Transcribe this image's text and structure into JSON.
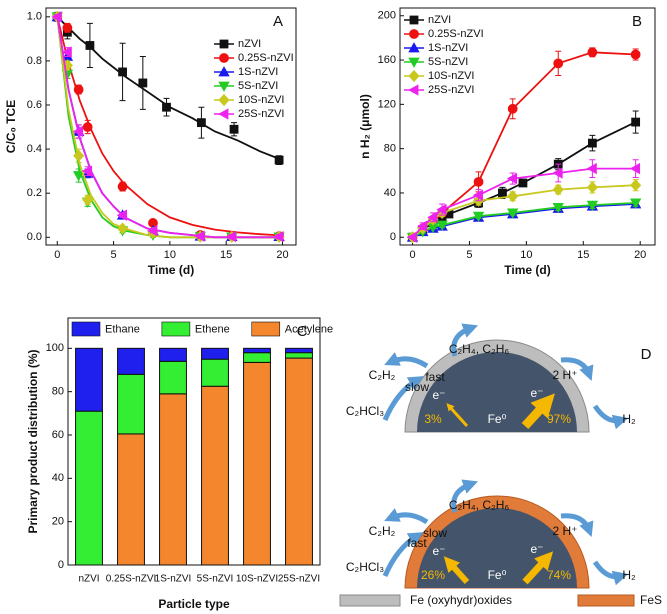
{
  "chart_data": [
    {
      "type": "scatter",
      "label": "A",
      "xlabel": "Time (d)",
      "ylabel": "C/C₀ TCE",
      "legend": "upper right",
      "xlim": [
        -1,
        21.2
      ],
      "ylim": [
        -0.035,
        1.04
      ],
      "xticks": [
        0,
        5,
        10,
        15,
        20
      ],
      "yticks": [
        {
          "value": 0,
          "label": "0.0"
        },
        0.2,
        0.4,
        0.6,
        0.8,
        {
          "value": 1,
          "label": "1.0"
        }
      ],
      "series": [
        {
          "name": "nZVI",
          "color": "#111111",
          "marker": "square",
          "x": [
            0,
            0.9,
            2.9,
            5.8,
            7.6,
            9.7,
            12.8,
            15.7,
            19.7
          ],
          "values": [
            1.0,
            0.93,
            0.87,
            0.75,
            0.7,
            0.59,
            0.52,
            0.49,
            0.35
          ],
          "errors": [
            0.02,
            0.03,
            0.1,
            0.13,
            0.12,
            0.04,
            0.07,
            0.03,
            0.02
          ],
          "fit": {
            "x": [
              0,
              1,
              2,
              3,
              4,
              5,
              6,
              8,
              10,
              12,
              14,
              16,
              18,
              20
            ],
            "values": [
              1,
              0.95,
              0.9,
              0.86,
              0.81,
              0.77,
              0.73,
              0.66,
              0.59,
              0.54,
              0.48,
              0.44,
              0.39,
              0.35
            ]
          }
        },
        {
          "name": "0.25S-nZVI",
          "color": "#ee1111",
          "marker": "circle",
          "x": [
            0,
            0.9,
            1.9,
            2.7,
            5.8,
            8.5,
            12.7,
            15.5,
            19.7
          ],
          "values": [
            1.0,
            0.95,
            0.67,
            0.5,
            0.23,
            0.065,
            0.01,
            0.005,
            0.005
          ],
          "errors": [
            0.01,
            0.02,
            0.02,
            0.03,
            0.02,
            0.01,
            0.01,
            0.01,
            0.01
          ],
          "fit": {
            "x": [
              0,
              1,
              2,
              3,
              4,
              5,
              6,
              8,
              10,
              12,
              14,
              16,
              18,
              20
            ],
            "values": [
              1,
              0.79,
              0.62,
              0.49,
              0.38,
              0.3,
              0.24,
              0.15,
              0.09,
              0.056,
              0.035,
              0.022,
              0.014,
              0.008
            ]
          }
        },
        {
          "name": "1S-nZVI",
          "color": "#1a1aee",
          "marker": "tri-up",
          "x": [
            0,
            0.9,
            1.9,
            2.7,
            5.8,
            8.5,
            12.7,
            15.5,
            19.7
          ],
          "values": [
            1.0,
            0.82,
            0.48,
            0.29,
            0.1,
            0.03,
            0.005,
            0.003,
            0.003
          ],
          "errors": [
            0.01,
            0.02,
            0.03,
            0.02,
            0.01,
            0.01,
            0.01,
            0.01,
            0.01
          ],
          "fit": {
            "x": [
              0,
              1,
              2,
              3,
              4,
              5,
              6,
              8,
              10,
              12,
              14,
              16,
              18,
              20
            ],
            "values": [
              1,
              0.67,
              0.45,
              0.3,
              0.2,
              0.14,
              0.09,
              0.04,
              0.02,
              0.01,
              0,
              0,
              0,
              0
            ]
          }
        },
        {
          "name": "5S-nZVI",
          "color": "#22cc22",
          "marker": "tri-down",
          "x": [
            0,
            0.9,
            1.9,
            2.7,
            5.8,
            8.5,
            12.7,
            15.5,
            19.7
          ],
          "values": [
            1.0,
            0.74,
            0.28,
            0.16,
            0.03,
            0.01,
            0.003,
            0.002,
            0.002
          ],
          "errors": [
            0.01,
            0.02,
            0.03,
            0.02,
            0.01,
            0.01,
            0.01,
            0.01,
            0.01
          ],
          "fit": {
            "x": [
              0,
              1,
              2,
              3,
              4,
              5,
              6,
              8,
              10,
              12,
              14,
              16,
              18,
              20
            ],
            "values": [
              1,
              0.55,
              0.3,
              0.17,
              0.09,
              0.05,
              0.03,
              0.01,
              0,
              0,
              0,
              0,
              0,
              0
            ]
          }
        },
        {
          "name": "10S-nZVI",
          "color": "#c8c81e",
          "marker": "diamond",
          "x": [
            0,
            0.9,
            1.9,
            2.7,
            5.8,
            8.5,
            12.7,
            15.5,
            19.7
          ],
          "values": [
            1.0,
            0.78,
            0.37,
            0.17,
            0.04,
            0.02,
            0.003,
            0.002,
            0.002
          ],
          "errors": [
            0.01,
            0.02,
            0.03,
            0.02,
            0.01,
            0.01,
            0.01,
            0.01,
            0.01
          ],
          "fit": {
            "x": [
              0,
              1,
              2,
              3,
              4,
              5,
              6,
              8,
              10,
              12,
              14,
              16,
              18,
              20
            ],
            "values": [
              1,
              0.58,
              0.33,
              0.19,
              0.11,
              0.06,
              0.04,
              0.01,
              0,
              0,
              0,
              0,
              0,
              0
            ]
          }
        },
        {
          "name": "25S-nZVI",
          "color": "#ee22ee",
          "marker": "tri-left",
          "x": [
            0,
            0.9,
            1.9,
            2.7,
            5.8,
            8.5,
            12.7,
            15.5,
            19.7
          ],
          "values": [
            1.0,
            0.84,
            0.48,
            0.3,
            0.1,
            0.03,
            0.005,
            0.003,
            0.003
          ],
          "errors": [
            0.01,
            0.02,
            0.03,
            0.02,
            0.01,
            0.01,
            0.01,
            0.01,
            0.01
          ],
          "fit": {
            "x": [
              0,
              1,
              2,
              3,
              4,
              5,
              6,
              8,
              10,
              12,
              14,
              16,
              18,
              20
            ],
            "values": [
              1,
              0.67,
              0.45,
              0.3,
              0.2,
              0.14,
              0.09,
              0.04,
              0.02,
              0.01,
              0,
              0,
              0,
              0
            ]
          }
        }
      ]
    },
    {
      "type": "line",
      "label": "B",
      "xlabel": "Time (d)",
      "ylabel": "n H₂ (μmol)",
      "legend": "upper left",
      "xlim": [
        -1.1,
        21.3
      ],
      "ylim": [
        -7,
        207
      ],
      "xticks": [
        0,
        5,
        10,
        15,
        20
      ],
      "yticks": [
        0,
        40,
        80,
        120,
        160,
        200
      ],
      "series": [
        {
          "name": "nZVI",
          "color": "#111111",
          "marker": "square",
          "x": [
            0,
            0.9,
            1.8,
            2.6,
            3.2,
            5.8,
            7.9,
            9.7,
            12.8,
            15.8,
            19.6
          ],
          "values": [
            0,
            7,
            13,
            17,
            21,
            31,
            40,
            49,
            66,
            85,
            104
          ],
          "errors": [
            0,
            2,
            2,
            3,
            3,
            4,
            5,
            3,
            5,
            7,
            10
          ]
        },
        {
          "name": "0.25S-nZVI",
          "color": "#ee1111",
          "marker": "circle",
          "x": [
            0,
            0.9,
            1.8,
            2.6,
            5.8,
            8.8,
            12.8,
            15.8,
            19.6
          ],
          "values": [
            0,
            8,
            14,
            22,
            50,
            116,
            157,
            167,
            165
          ],
          "errors": [
            0,
            2,
            3,
            3,
            9,
            9,
            11,
            4,
            5
          ]
        },
        {
          "name": "1S-nZVI",
          "color": "#1a1aee",
          "marker": "tri-up",
          "x": [
            0,
            0.9,
            1.8,
            2.6,
            5.8,
            8.8,
            12.8,
            15.8,
            19.6
          ],
          "values": [
            0,
            5,
            8,
            10,
            18,
            21,
            26,
            28,
            30
          ],
          "errors": [
            0,
            1,
            1,
            2,
            2,
            2,
            3,
            3,
            3
          ]
        },
        {
          "name": "5S-nZVI",
          "color": "#22cc22",
          "marker": "tri-down",
          "x": [
            0,
            0.9,
            1.8,
            2.6,
            5.8,
            8.8,
            12.8,
            15.8,
            19.6
          ],
          "values": [
            0,
            5,
            9,
            11,
            19,
            22,
            27,
            29,
            31
          ],
          "errors": [
            0,
            1,
            1,
            2,
            2,
            2,
            3,
            3,
            3
          ]
        },
        {
          "name": "10S-nZVI",
          "color": "#c8c81e",
          "marker": "diamond",
          "x": [
            0,
            0.9,
            1.8,
            2.6,
            5.8,
            8.8,
            12.8,
            15.8,
            19.6
          ],
          "values": [
            0,
            8,
            16,
            22,
            33,
            37,
            43,
            45,
            47
          ],
          "errors": [
            0,
            2,
            3,
            3,
            4,
            4,
            4,
            5,
            5
          ]
        },
        {
          "name": "25S-nZVI",
          "color": "#ee22ee",
          "marker": "tri-left",
          "x": [
            0,
            0.9,
            1.8,
            2.6,
            5.8,
            8.8,
            12.8,
            15.8,
            19.6
          ],
          "values": [
            0,
            10,
            18,
            25,
            38,
            53,
            58,
            62,
            62
          ],
          "errors": [
            0,
            3,
            4,
            5,
            5,
            5,
            8,
            8,
            8
          ]
        }
      ]
    },
    {
      "type": "bar",
      "stacked": true,
      "label": "C",
      "xlabel": "Particle type",
      "ylabel": "Primary product distribution (%)",
      "legend": "top",
      "categories": [
        "nZVI",
        "0.25S-nZVI",
        "1S-nZVI",
        "5S-nZVI",
        "10S-nZVI",
        "25S-nZVI"
      ],
      "ylim": [
        0,
        114
      ],
      "yticks": [
        0,
        20,
        40,
        60,
        80,
        100
      ],
      "series": [
        {
          "name": "Acetylene",
          "color": "#f4862e",
          "values": [
            0,
            60.5,
            79,
            82.5,
            93.5,
            95.5
          ]
        },
        {
          "name": "Ethene",
          "color": "#33ee33",
          "values": [
            71,
            27.5,
            15,
            12.5,
            4.5,
            2.5
          ]
        },
        {
          "name": "Ethane",
          "color": "#1f1fee",
          "values": [
            29,
            12,
            6,
            5,
            2,
            2
          ]
        }
      ]
    }
  ],
  "diagram": {
    "panel_label": "D",
    "top": {
      "products": "C₂H₄, C₂H₆",
      "intermediate": "C₂H₂",
      "step2_rate": "fast",
      "reactant": "C₂HCl₃",
      "step1_rate": "slow",
      "proton": "2 H⁺",
      "hydrogen": "H₂",
      "electron_left": "e⁻",
      "share_left": "3%",
      "core": "Fe⁰",
      "electron_right": "e⁻",
      "share_right": "97%"
    },
    "bottom": {
      "products": "C₂H₄, C₂H₆",
      "intermediate": "C₂H₂",
      "step2_rate": "slow",
      "reactant": "C₂HCl₃",
      "step1_rate": "fast",
      "proton": "2 H⁺",
      "hydrogen": "H₂",
      "electron_left": "e⁻",
      "share_left": "26%",
      "core": "Fe⁰",
      "electron_right": "e⁻",
      "share_right": "74%"
    },
    "legend": [
      "Fe (oxyhydr)oxides",
      "FeS"
    ]
  }
}
